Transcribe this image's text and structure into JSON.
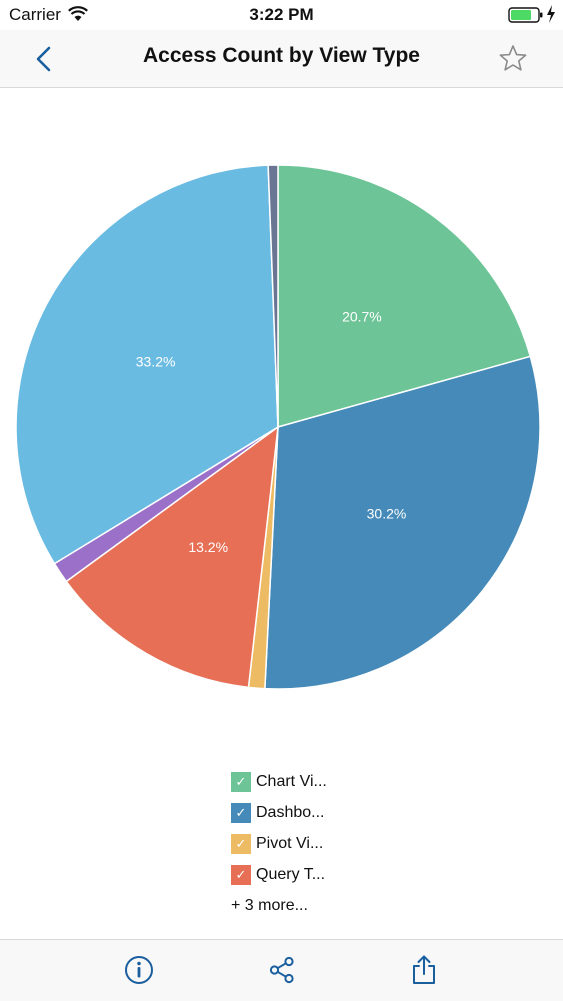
{
  "status_bar": {
    "carrier": "Carrier",
    "time": "3:22 PM"
  },
  "nav": {
    "title": "Access Count by View Type",
    "back_icon": "chevron-left-icon",
    "star_icon": "star-icon"
  },
  "chart_data": {
    "type": "pie",
    "title": "Access Count by View Type",
    "slices": [
      {
        "name": "Chart Vi...",
        "value": 20.7,
        "label": "20.7%",
        "color": "#6cc497"
      },
      {
        "name": "Dashbo...",
        "value": 30.2,
        "label": "30.2%",
        "color": "#458ab8"
      },
      {
        "name": "Pivot Vi...",
        "value": 1.0,
        "label": "",
        "color": "#ecbb63"
      },
      {
        "name": "Query T...",
        "value": 13.2,
        "label": "13.2%",
        "color": "#e66f55"
      },
      {
        "name": "",
        "value": 1.3,
        "label": "",
        "color": "#9b70c9"
      },
      {
        "name": "",
        "value": 33.2,
        "label": "33.2%",
        "color": "#6abbe2"
      },
      {
        "name": "",
        "value": 0.6,
        "label": "",
        "color": "#697593"
      }
    ],
    "legend_position": "bottom"
  },
  "legend": {
    "items": [
      {
        "label": "Chart Vi...",
        "color": "#6cc497",
        "check": "✓"
      },
      {
        "label": "Dashbo...",
        "color": "#458ab8",
        "check": "✓"
      },
      {
        "label": "Pivot Vi...",
        "color": "#ecbb63",
        "check": "✓"
      },
      {
        "label": "Query T...",
        "color": "#e66f55",
        "check": "✓"
      }
    ],
    "more": "+ 3 more..."
  },
  "toolbar": {
    "info_icon": "info-icon",
    "share_icon": "share-icon",
    "export_icon": "export-icon"
  },
  "colors": {
    "accent": "#1a5e9e"
  }
}
